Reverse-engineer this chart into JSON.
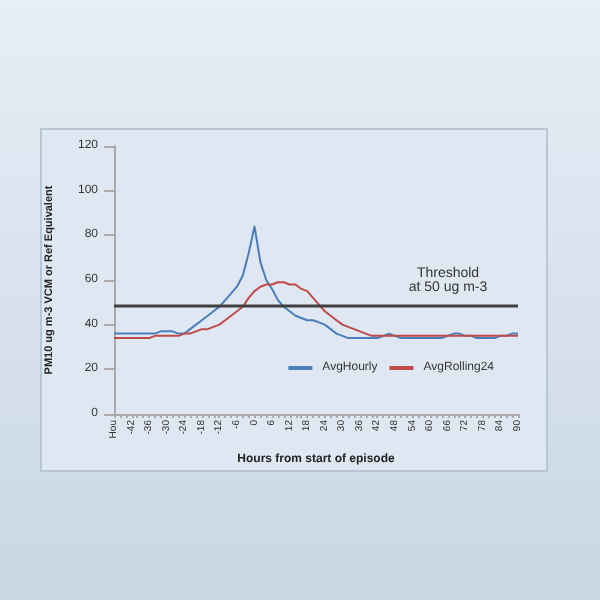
{
  "chart_data": {
    "type": "line",
    "xlabel": "Hours from start of episode",
    "ylabel": "PM10 ug m-3 VCM or Ref Equivalent",
    "categories": [
      "Hou",
      null,
      null,
      "-42",
      null,
      null,
      "-36",
      null,
      null,
      "-30",
      null,
      null,
      "-24",
      null,
      null,
      "-18",
      null,
      null,
      "-12",
      null,
      null,
      "-6",
      null,
      null,
      "0",
      null,
      null,
      "6",
      null,
      null,
      "12",
      null,
      null,
      "18",
      null,
      null,
      "24",
      null,
      null,
      "30",
      null,
      null,
      "36",
      null,
      null,
      "42",
      null,
      null,
      "48",
      null,
      null,
      "54",
      null,
      null,
      "60",
      null,
      null,
      "66",
      null,
      null,
      "72",
      null,
      null,
      "78",
      null,
      null,
      "84",
      null,
      null,
      "90"
    ],
    "series": [
      {
        "name": "AvgHourly",
        "color": "#4a7ebb",
        "values": [
          36,
          36,
          36,
          36,
          36,
          36,
          36,
          36,
          37,
          37,
          37,
          36,
          36,
          38,
          40,
          42,
          44,
          46,
          48,
          51,
          54,
          57,
          62,
          72,
          84,
          68,
          60,
          56,
          51,
          48,
          46,
          44,
          43,
          42,
          42,
          41,
          40,
          38,
          36,
          35,
          34,
          34,
          34,
          34,
          34,
          34,
          35,
          36,
          35,
          34,
          34,
          34,
          34,
          34,
          34,
          34,
          34,
          35,
          36,
          36,
          35,
          35,
          34,
          34,
          34,
          34,
          35,
          35,
          36,
          36
        ]
      },
      {
        "name": "AvgRolling24",
        "color": "#be4b48",
        "values": [
          34,
          34,
          34,
          34,
          34,
          34,
          34,
          35,
          35,
          35,
          35,
          35,
          36,
          36,
          37,
          38,
          38,
          39,
          40,
          42,
          44,
          46,
          48,
          52,
          55,
          57,
          58,
          58,
          59,
          59,
          58,
          58,
          56,
          55,
          52,
          49,
          46,
          44,
          42,
          40,
          39,
          38,
          37,
          36,
          35,
          35,
          35,
          35,
          35,
          35,
          35,
          35,
          35,
          35,
          35,
          35,
          35,
          35,
          35,
          35,
          35,
          35,
          35,
          35,
          35,
          35,
          35,
          35,
          35,
          35
        ]
      }
    ],
    "ylim": [
      0,
      120
    ],
    "yticks": [
      0,
      20,
      40,
      60,
      80,
      100,
      120
    ],
    "ref_lines": [
      {
        "axis": "y",
        "value": 49,
        "label": "Threshold\nat 50 ug m-3",
        "color": "#404040"
      }
    ],
    "legend": "bottom right",
    "grid": false,
    "marker": "none",
    "line_style": "solid"
  }
}
